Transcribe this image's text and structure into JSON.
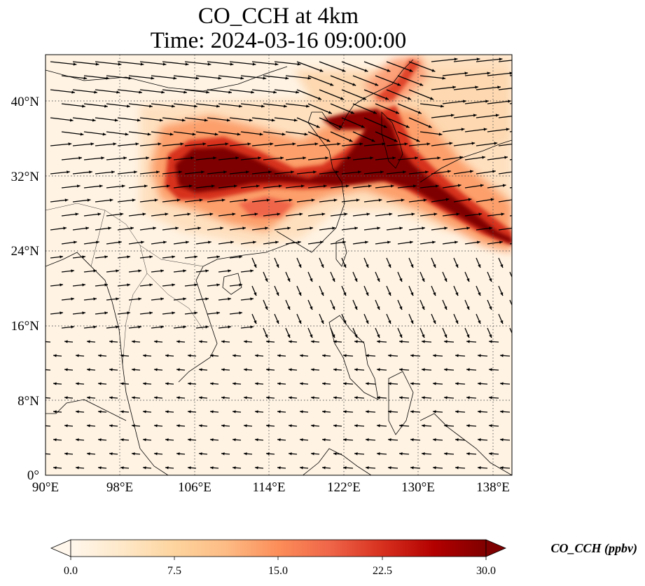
{
  "title": {
    "line1": "CO_CCH at 4km",
    "line2": "Time: 2024-03-16 09:00:00"
  },
  "map": {
    "lon_range": [
      90,
      140
    ],
    "lat_range": [
      0,
      45
    ],
    "xticks": [
      {
        "value": 90,
        "label": "90°E"
      },
      {
        "value": 98,
        "label": "98°E"
      },
      {
        "value": 106,
        "label": "106°E"
      },
      {
        "value": 114,
        "label": "114°E"
      },
      {
        "value": 122,
        "label": "122°E"
      },
      {
        "value": 130,
        "label": "130°E"
      },
      {
        "value": 138,
        "label": "138°E"
      }
    ],
    "yticks": [
      {
        "value": 0,
        "label": "0°"
      },
      {
        "value": 8,
        "label": "8°N"
      },
      {
        "value": 16,
        "label": "16°N"
      },
      {
        "value": 24,
        "label": "24°N"
      },
      {
        "value": 32,
        "label": "32°N"
      },
      {
        "value": 40,
        "label": "40°N"
      }
    ],
    "gridlines": "dotted",
    "plume_description": "High CO concentration band over central China, Yellow Sea, Korea and Japan; wind vectors overlaid"
  },
  "colorbar": {
    "label": "CO_CCH (ppbv)",
    "min": 0,
    "max": 30,
    "ticks": [
      "0.0",
      "7.5",
      "15.0",
      "22.5",
      "30.0"
    ],
    "extend": "both",
    "colormap": "OrRd",
    "colors": [
      "#fff7ec",
      "#fee8c8",
      "#fdd49e",
      "#fdbb84",
      "#fc8d59",
      "#ef6548",
      "#d7301f",
      "#b30000",
      "#7f0000"
    ]
  }
}
